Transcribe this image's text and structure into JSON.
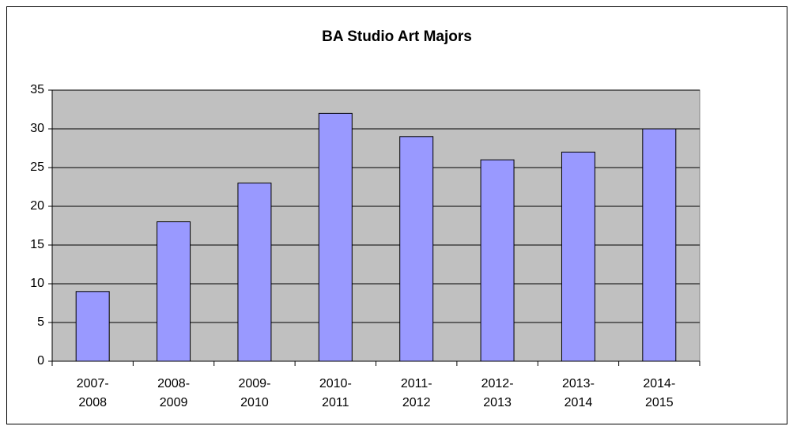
{
  "chart_data": {
    "type": "bar",
    "title": "BA Studio Art Majors",
    "categories": [
      "2007-2008",
      "2008-2009",
      "2009-2010",
      "2010-2011",
      "2011-2012",
      "2012-2013",
      "2013-2014",
      "2014-2015"
    ],
    "values": [
      9,
      18,
      23,
      32,
      29,
      26,
      27,
      30
    ],
    "color": "#9999ff",
    "ylim": [
      0,
      35
    ],
    "yticks": [
      0,
      5,
      10,
      15,
      20,
      25,
      30,
      35
    ],
    "grid": true
  }
}
